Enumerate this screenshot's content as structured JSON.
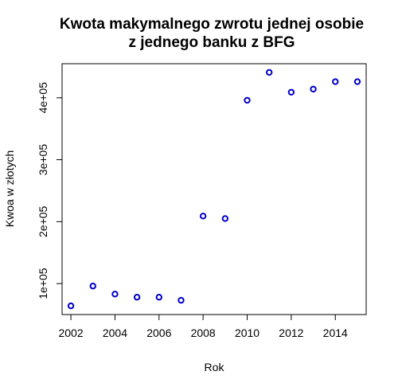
{
  "chart_data": {
    "type": "scatter",
    "title": [
      "Kwota makymalnego zwrotu jednej osobie",
      "z jednego banku z BFG"
    ],
    "xlabel": "Rok",
    "ylabel": "Kwoa w złotych",
    "xlim": [
      2001.6,
      2015.4
    ],
    "ylim": [
      50000,
      455000
    ],
    "x_ticks": [
      2002,
      2004,
      2006,
      2008,
      2010,
      2012,
      2014
    ],
    "x_tick_labels": [
      "2002",
      "2004",
      "2006",
      "2008",
      "2010",
      "2012",
      "2014"
    ],
    "y_ticks": [
      100000,
      200000,
      300000,
      400000
    ],
    "y_tick_labels": [
      "1e+05",
      "2e+05",
      "3e+05",
      "4e+05"
    ],
    "grid": false,
    "point_color": "#0000cd",
    "x": [
      2002,
      2003,
      2004,
      2005,
      2006,
      2007,
      2008,
      2009,
      2010,
      2011,
      2012,
      2013,
      2014,
      2015
    ],
    "y": [
      64000,
      96000,
      83000,
      78000,
      78000,
      73000,
      209000,
      205000,
      396000,
      441000,
      409000,
      414000,
      426000,
      426000
    ]
  }
}
